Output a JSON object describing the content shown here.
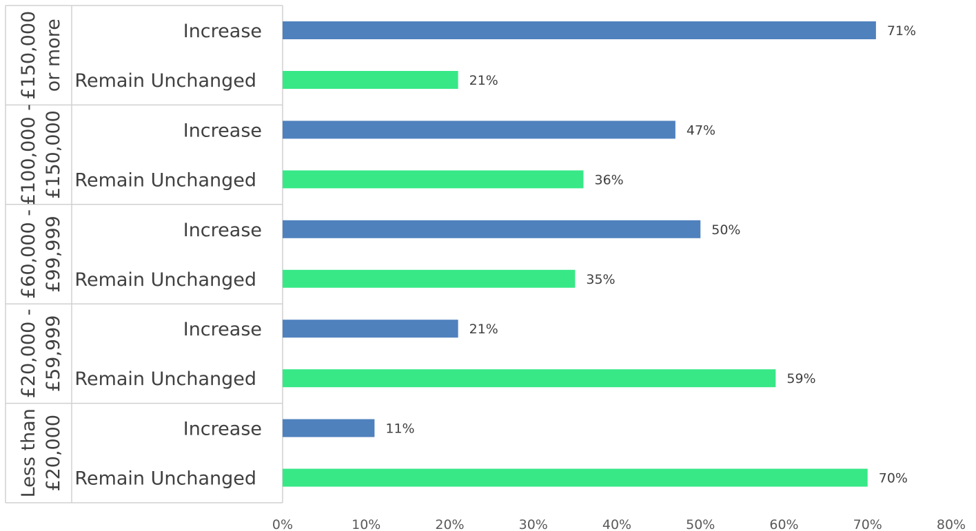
{
  "chart_data": {
    "type": "bar",
    "orientation": "horizontal",
    "title": "",
    "xlabel": "",
    "ylabel": "",
    "xlim": [
      0,
      80
    ],
    "x_ticks": [
      "0%",
      "10%",
      "20%",
      "30%",
      "40%",
      "50%",
      "60%",
      "70%",
      "80%"
    ],
    "grid": false,
    "colors": {
      "Increase": "#4f81bd",
      "Remain Unchanged": "#38e887"
    },
    "groups": [
      {
        "label_lines": [
          "£150,000",
          "or more"
        ],
        "bars": [
          {
            "category": "Increase",
            "value": 71,
            "label": "71%"
          },
          {
            "category": "Remain Unchanged",
            "value": 21,
            "label": "21%"
          }
        ]
      },
      {
        "label_lines": [
          "£100,000 -",
          "£150,000"
        ],
        "bars": [
          {
            "category": "Increase",
            "value": 47,
            "label": "47%"
          },
          {
            "category": "Remain Unchanged",
            "value": 36,
            "label": "36%"
          }
        ]
      },
      {
        "label_lines": [
          "£60,000 -",
          "£99,999"
        ],
        "bars": [
          {
            "category": "Increase",
            "value": 50,
            "label": "50%"
          },
          {
            "category": "Remain Unchanged",
            "value": 35,
            "label": "35%"
          }
        ]
      },
      {
        "label_lines": [
          "£20,000 -",
          "£59,999"
        ],
        "bars": [
          {
            "category": "Increase",
            "value": 21,
            "label": "21%"
          },
          {
            "category": "Remain Unchanged",
            "value": 59,
            "label": "59%"
          }
        ]
      },
      {
        "label_lines": [
          "Less than",
          "£20,000"
        ],
        "bars": [
          {
            "category": "Increase",
            "value": 11,
            "label": "11%"
          },
          {
            "category": "Remain Unchanged",
            "value": 70,
            "label": "70%"
          }
        ]
      }
    ]
  }
}
